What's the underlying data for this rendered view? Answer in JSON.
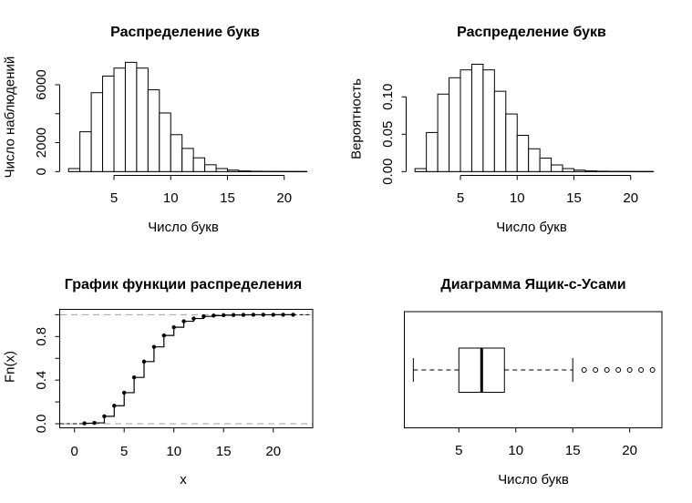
{
  "page": {
    "background": "#ffffff",
    "foreground": "#000000",
    "dashed_reference_line_color": "#a0a0a0"
  },
  "chart_data": [
    {
      "id": "letters-histogram-counts",
      "type": "bar",
      "chart_kind": "histogram",
      "title": "Распределение букв",
      "xlabel": "Число букв",
      "ylabel": "Число наблюдений",
      "bins_start": 1,
      "bin_width": 1,
      "values": [
        210,
        2750,
        5450,
        6600,
        7150,
        7550,
        7150,
        5650,
        4050,
        2550,
        1600,
        950,
        470,
        210,
        100,
        45,
        25,
        15,
        10,
        6,
        4
      ],
      "x_ticks": [
        5,
        10,
        15,
        20
      ],
      "x_tick_labels": [
        "5",
        "10",
        "15",
        "20"
      ],
      "y_ticks": [
        0,
        2000,
        4000,
        6000
      ],
      "y_tick_labels": [
        "0",
        "2000",
        "",
        "6000"
      ],
      "xlim": [
        0.16,
        22.84
      ],
      "ylim": [
        0,
        7800
      ],
      "grid": false,
      "bar_fill": "#ffffff",
      "bar_stroke": "#000000"
    },
    {
      "id": "letters-histogram-probability",
      "type": "bar",
      "chart_kind": "histogram",
      "title": "Распределение букв",
      "xlabel": "Число букв",
      "ylabel": "Вероятность",
      "bins_start": 1,
      "bin_width": 1,
      "values": [
        0.004,
        0.0523,
        0.1037,
        0.1256,
        0.1361,
        0.1437,
        0.1361,
        0.1075,
        0.0771,
        0.0485,
        0.0305,
        0.0181,
        0.0089,
        0.004,
        0.0019,
        0.0009,
        0.0005,
        0.0003,
        0.0002,
        0.0001,
        0.0001
      ],
      "x_ticks": [
        5,
        10,
        15,
        20
      ],
      "x_tick_labels": [
        "5",
        "10",
        "15",
        "20"
      ],
      "y_ticks": [
        0,
        0.05,
        0.1
      ],
      "y_tick_labels": [
        "0.00",
        "0.05",
        "0.10"
      ],
      "xlim": [
        0.16,
        22.84
      ],
      "ylim": [
        0,
        0.15
      ],
      "grid": false,
      "bar_fill": "#ffffff",
      "bar_stroke": "#000000"
    },
    {
      "id": "ecdf-plot",
      "type": "line",
      "chart_kind": "ecdf-step",
      "title": "График функции распределения",
      "xlabel": "x",
      "ylabel": "Fn(x)",
      "x": [
        1,
        2,
        3,
        4,
        5,
        6,
        7,
        8,
        9,
        10,
        11,
        12,
        13,
        14,
        15,
        16,
        17,
        18,
        19,
        20,
        21,
        22
      ],
      "y": [
        0.004,
        0.008,
        0.068,
        0.165,
        0.285,
        0.425,
        0.57,
        0.705,
        0.81,
        0.885,
        0.94,
        0.965,
        0.985,
        0.992,
        0.996,
        0.998,
        0.999,
        0.9995,
        0.9997,
        0.9999,
        1,
        1
      ],
      "x_ticks": [
        0,
        5,
        10,
        15,
        20
      ],
      "x_tick_labels": [
        "0",
        "5",
        "10",
        "15",
        "20"
      ],
      "y_ticks": [
        0,
        0.2,
        0.4,
        0.6,
        0.8,
        1
      ],
      "y_tick_labels": [
        "0.0",
        "",
        "0.4",
        "",
        "0.8",
        ""
      ],
      "hlines": {
        "values": [
          0,
          1
        ],
        "style": "dashed",
        "color": "#a0a0a0"
      },
      "xlim": [
        -1.5,
        24
      ],
      "ylim": [
        -0.04,
        1.04
      ],
      "grid": false,
      "point_style": "filled-circle",
      "frame_box": true
    },
    {
      "id": "letters-boxplot",
      "type": "boxplot",
      "chart_kind": "box-and-whiskers",
      "title": "Диаграмма Ящик-с-Усами",
      "xlabel": "Число букв",
      "orientation": "horizontal",
      "stats": {
        "whisker_low": 1,
        "q1": 5,
        "median": 7,
        "q3": 9,
        "whisker_high": 15
      },
      "outliers": [
        16,
        17,
        18,
        19,
        20,
        21,
        22
      ],
      "x_ticks": [
        5,
        10,
        15,
        20
      ],
      "x_tick_labels": [
        "5",
        "10",
        "15",
        "20"
      ],
      "xlim": [
        0.33,
        22.6
      ],
      "grid": false,
      "frame_box": true
    }
  ]
}
